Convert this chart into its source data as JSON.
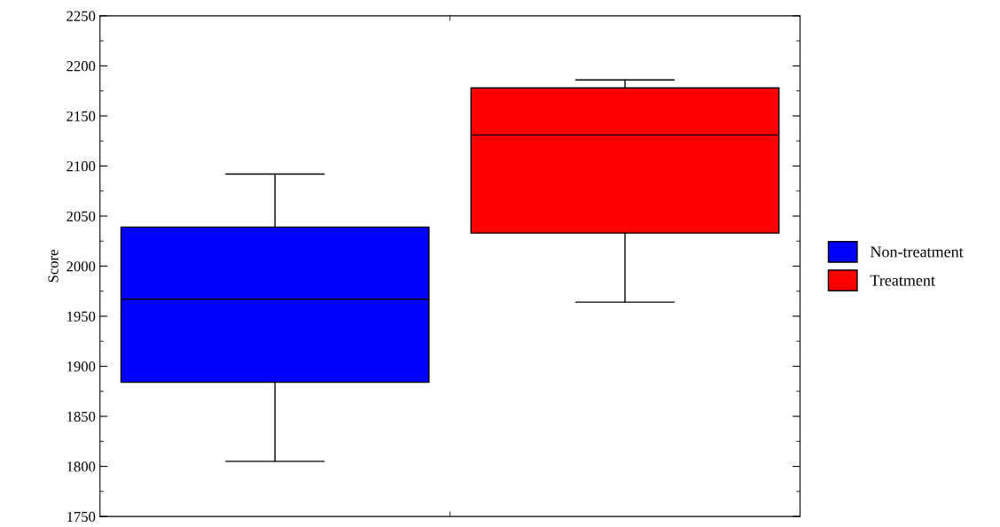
{
  "chart_data": {
    "type": "box",
    "ylabel": "Score",
    "categories": [
      null,
      null
    ],
    "series": [
      {
        "name": "Non-treatment",
        "color": "#0000ff",
        "boxes": [
          {
            "low": 1805,
            "q1": 1884,
            "median": 1967,
            "q3": 2039,
            "high": 2092
          },
          null
        ]
      },
      {
        "name": "Treatment",
        "color": "#ff0000",
        "boxes": [
          null,
          {
            "low": 1964,
            "q1": 2033,
            "median": 2131,
            "q3": 2178,
            "high": 2186
          }
        ]
      }
    ],
    "ylim": [
      1750,
      2250
    ],
    "yticks": [
      1750,
      1800,
      1850,
      1900,
      1950,
      2000,
      2050,
      2100,
      2150,
      2200,
      2250
    ],
    "grid": false,
    "legend": "right"
  }
}
